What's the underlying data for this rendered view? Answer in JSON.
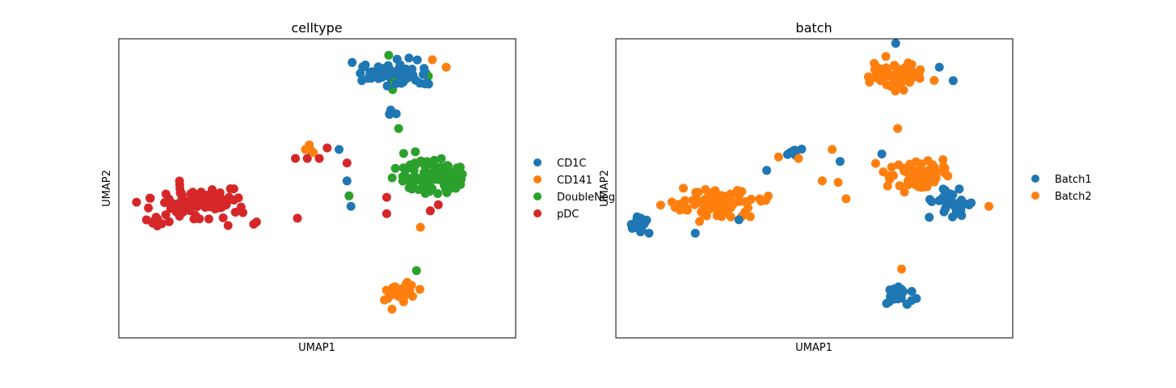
{
  "chart_data": [
    {
      "type": "scatter",
      "title": "celltype",
      "xlabel": "UMAP1",
      "ylabel": "UMAP2",
      "xlim": [
        -10,
        10
      ],
      "ylim": [
        -10,
        10
      ],
      "grid": false,
      "ticks": false,
      "legend_position": "right",
      "series": [
        {
          "name": "CD1C",
          "color": "#1f77b4",
          "clusters": [
            {
              "center": [
                3.8,
                7.7
              ],
              "spread": [
                1.5,
                0.85
              ],
              "n": 58
            },
            {
              "center": [
                5.3,
                7.0
              ],
              "spread": [
                0.5,
                0.35
              ],
              "n": 5
            },
            {
              "center": [
                3.7,
                5.2
              ],
              "spread": [
                0.3,
                0.4
              ],
              "n": 4
            }
          ],
          "points": [
            [
              1.1,
              2.6
            ],
            [
              1.5,
              0.5
            ],
            [
              1.7,
              -1.2
            ]
          ]
        },
        {
          "name": "CD141",
          "color": "#ff7f0e",
          "clusters": [
            {
              "center": [
                4.2,
                -7.0
              ],
              "spread": [
                0.8,
                0.75
              ],
              "n": 30
            }
          ],
          "points": [
            [
              5.8,
              8.6
            ],
            [
              6.5,
              8.1
            ],
            [
              -0.6,
              2.6
            ],
            [
              -0.4,
              2.9
            ],
            [
              -0.2,
              2.4
            ],
            [
              5.2,
              -2.6
            ]
          ]
        },
        {
          "name": "DoubleNeg",
          "color": "#2ca02c",
          "clusters": [
            {
              "center": [
                5.9,
                0.7
              ],
              "spread": [
                1.9,
                1.15
              ],
              "n": 100
            }
          ],
          "points": [
            [
              4.1,
              4.0
            ],
            [
              3.8,
              6.6
            ],
            [
              3.6,
              8.9
            ],
            [
              -0.3,
              2.5
            ],
            [
              5.0,
              -5.5
            ],
            [
              1.6,
              -0.5
            ],
            [
              5.6,
              7.5
            ],
            [
              3.9,
              7.1
            ]
          ]
        },
        {
          "name": "pDC",
          "color": "#d62728",
          "clusters": [
            {
              "center": [
                -6.0,
                -0.9
              ],
              "spread": [
                2.2,
                1.0
              ],
              "n": 100
            },
            {
              "center": [
                -8.1,
                -2.2
              ],
              "spread": [
                0.5,
                0.3
              ],
              "n": 12
            }
          ],
          "points": [
            [
              -1.1,
              2.0
            ],
            [
              -0.5,
              2.0
            ],
            [
              0.1,
              2.0
            ],
            [
              0.5,
              2.7
            ],
            [
              1.5,
              1.7
            ],
            [
              3.5,
              -0.6
            ],
            [
              3.5,
              -1.7
            ],
            [
              6.1,
              -1.1
            ],
            [
              5.7,
              -1.5
            ],
            [
              -3.2,
              -2.4
            ],
            [
              -1.0,
              -2.0
            ]
          ]
        }
      ]
    },
    {
      "type": "scatter",
      "title": "batch",
      "xlabel": "UMAP1",
      "ylabel": "UMAP2",
      "xlim": [
        -10,
        10
      ],
      "ylim": [
        -10,
        10
      ],
      "grid": false,
      "ticks": false,
      "legend_position": "right",
      "series": [
        {
          "name": "Batch1",
          "color": "#1f77b4",
          "clusters": [
            {
              "center": [
                -8.7,
                -2.4
              ],
              "spread": [
                0.6,
                0.55
              ],
              "n": 28
            },
            {
              "center": [
                6.8,
                -0.9
              ],
              "spread": [
                1.3,
                1.1
              ],
              "n": 36
            },
            {
              "center": [
                4.2,
                -7.0
              ],
              "spread": [
                0.7,
                0.75
              ],
              "n": 28
            },
            {
              "center": [
                -1.1,
                2.4
              ],
              "spread": [
                0.4,
                0.25
              ],
              "n": 8
            }
          ],
          "points": [
            [
              4.1,
              9.7
            ],
            [
              6.3,
              8.1
            ],
            [
              7.0,
              7.2
            ],
            [
              -6.0,
              -3.0
            ],
            [
              -2.4,
              1.2
            ],
            [
              -3.8,
              -2.1
            ],
            [
              3.4,
              2.3
            ],
            [
              1.3,
              1.8
            ]
          ]
        },
        {
          "name": "Batch2",
          "color": "#ff7f0e",
          "clusters": [
            {
              "center": [
                4.1,
                7.6
              ],
              "spread": [
                1.4,
                0.9
              ],
              "n": 70
            },
            {
              "center": [
                -5.0,
                -1.0
              ],
              "spread": [
                1.9,
                1.1
              ],
              "n": 80
            },
            {
              "center": [
                5.2,
                0.9
              ],
              "spread": [
                1.5,
                0.9
              ],
              "n": 70
            }
          ],
          "points": [
            [
              4.2,
              4.0
            ],
            [
              0.9,
              2.6
            ],
            [
              1.2,
              0.4
            ],
            [
              1.6,
              -0.7
            ],
            [
              -0.8,
              2.0
            ],
            [
              -1.8,
              2.1
            ],
            [
              8.8,
              -1.2
            ],
            [
              4.4,
              -5.4
            ],
            [
              0.4,
              0.5
            ]
          ]
        }
      ]
    }
  ]
}
